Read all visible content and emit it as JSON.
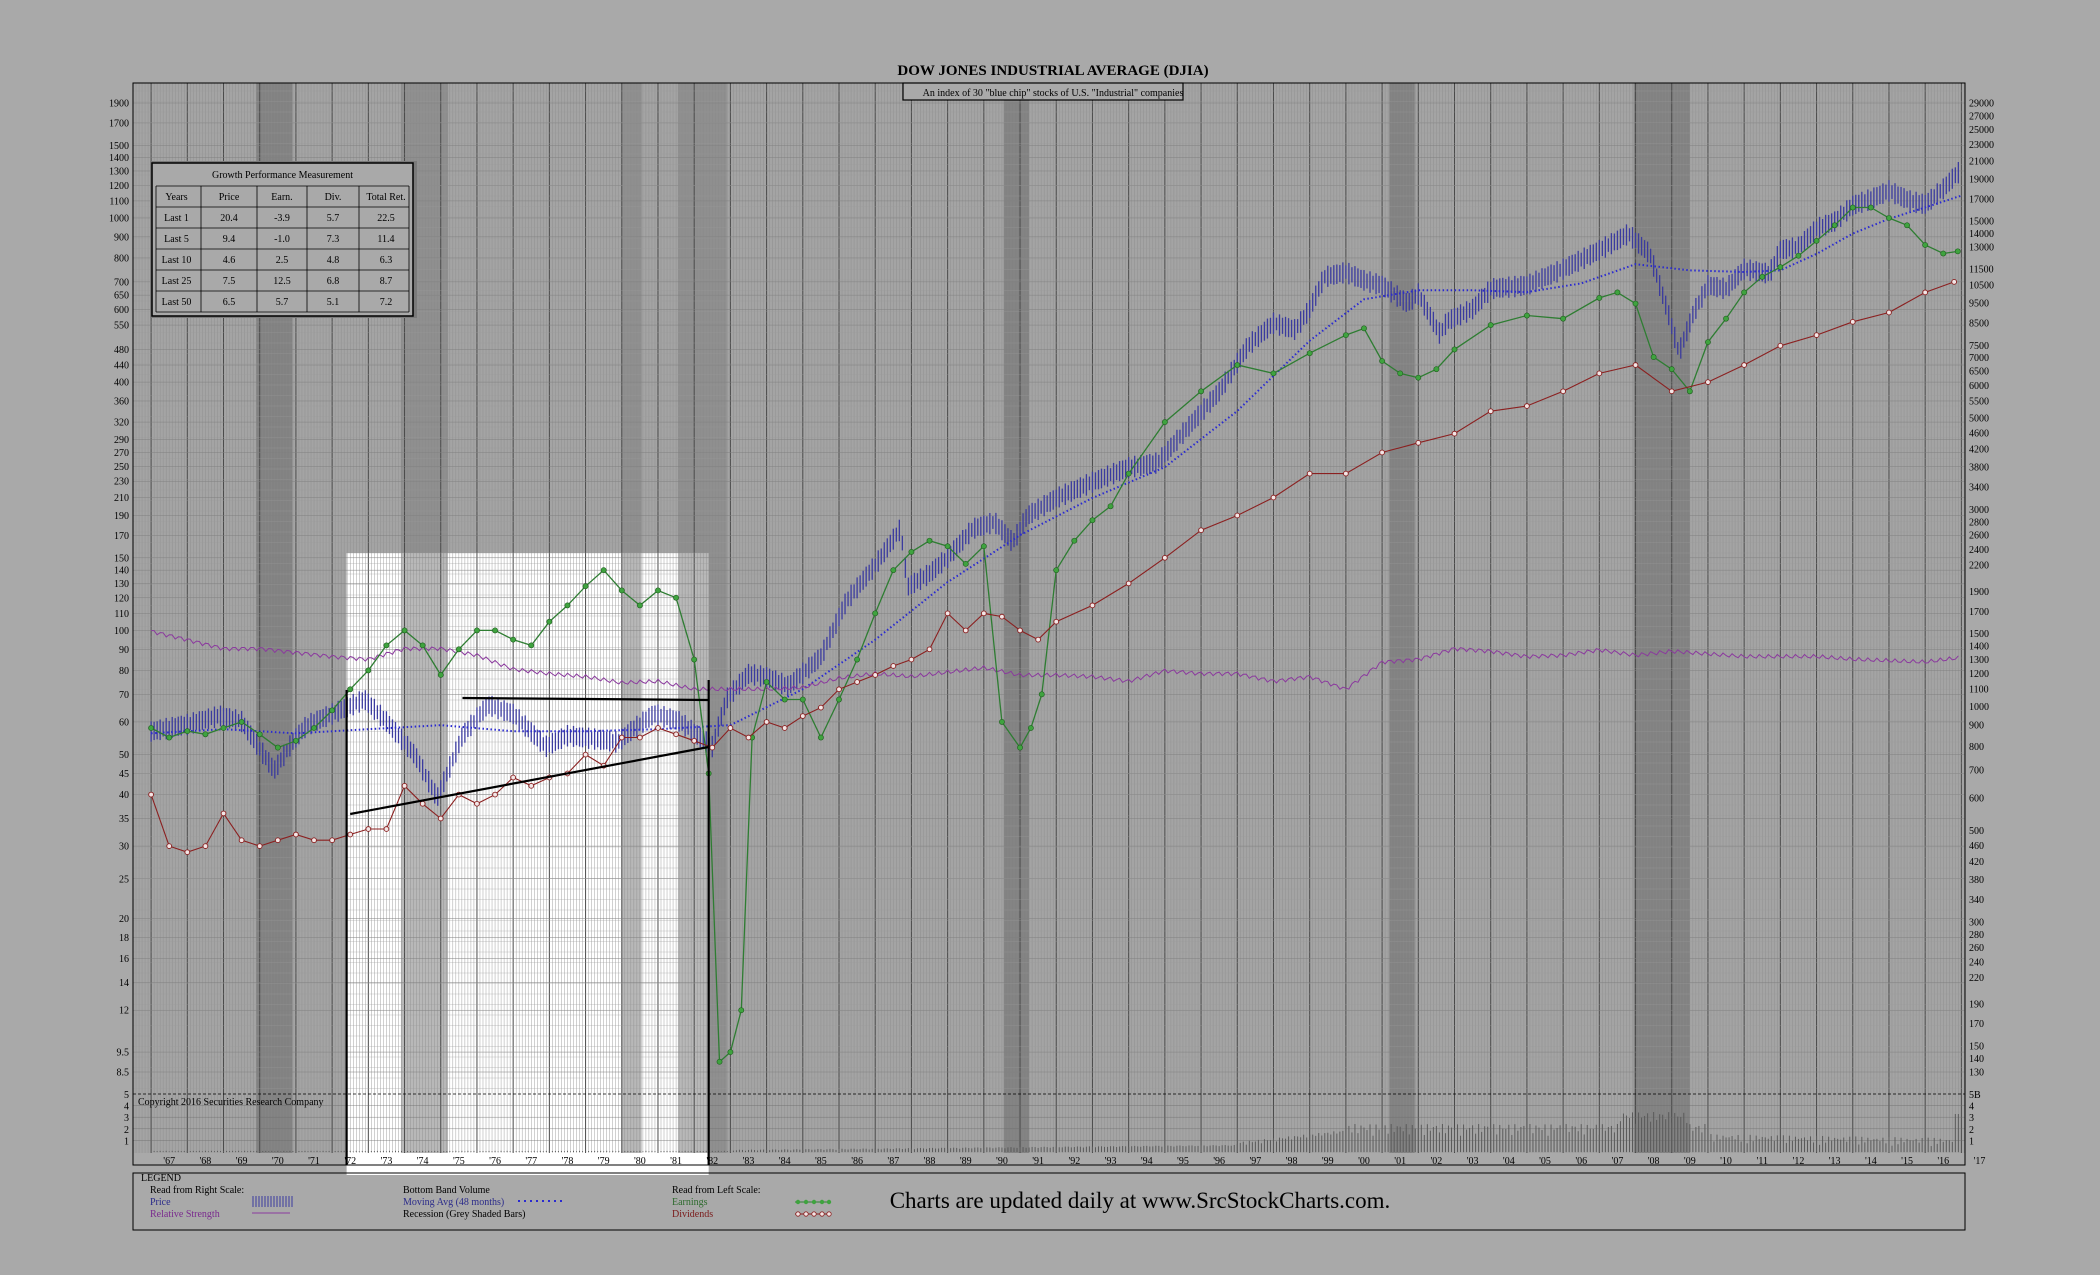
{
  "chart_data": {
    "type": "line",
    "title": "DOW JONES INDUSTRIAL AVERAGE (DJIA)",
    "subtitle": "An index of 30 \"blue chip\" stocks of U.S. \"Industrial\" companies",
    "copyright": "Copyright 2016 Securities Research Company",
    "footer_text": "Charts are updated daily at www.SrcStockCharts.com.",
    "x_range": [
      1966.5,
      2017.1
    ],
    "x_labels": [
      "'67",
      "'68",
      "'69",
      "'70",
      "'71",
      "'72",
      "'73",
      "'74",
      "'75",
      "'76",
      "'77",
      "'78",
      "'79",
      "'80",
      "'81",
      "'82",
      "'83",
      "'84",
      "'85",
      "'86",
      "'87",
      "'88",
      "'89",
      "'90",
      "'91",
      "'92",
      "'93",
      "'94",
      "'95",
      "'96",
      "'97",
      "'98",
      "'99",
      "'00",
      "'01",
      "'02",
      "'03",
      "'04",
      "'05",
      "'06",
      "'07",
      "'08",
      "'09",
      "'10",
      "'11",
      "'12",
      "'13",
      "'14",
      "'15",
      "'16",
      "'17"
    ],
    "left_axis_range": [
      7.3,
      2100
    ],
    "left_ticks": [
      "1900",
      "1700",
      "1500",
      "1400",
      "1300",
      "1200",
      "1100",
      "1000",
      "900",
      "800",
      "700",
      "650",
      "600",
      "550",
      "480",
      "440",
      "400",
      "360",
      "320",
      "290",
      "270",
      "250",
      "230",
      "210",
      "190",
      "170",
      "150",
      "140",
      "130",
      "120",
      "110",
      "100",
      "90",
      "80",
      "70",
      "60",
      "50",
      "45",
      "40",
      "35",
      "30",
      "25",
      "20",
      "18",
      "16",
      "14",
      "12",
      "9.5",
      "8.5"
    ],
    "right_axis_range": [
      105,
      30000
    ],
    "right_ticks": [
      "29000",
      "27000",
      "25000",
      "23000",
      "21000",
      "19000",
      "17000",
      "15000",
      "14000",
      "13000",
      "11500",
      "10500",
      "9500",
      "8500",
      "7500",
      "7000",
      "6500",
      "6000",
      "5500",
      "5000",
      "4600",
      "4200",
      "3800",
      "3400",
      "3000",
      "2800",
      "2600",
      "2400",
      "2200",
      "1900",
      "1700",
      "1500",
      "1400",
      "1300",
      "1200",
      "1100",
      "1000",
      "900",
      "800",
      "700",
      "600",
      "500",
      "460",
      "420",
      "380",
      "340",
      "300",
      "280",
      "260",
      "240",
      "220",
      "190",
      "170",
      "150",
      "140",
      "130"
    ],
    "volume_ticks": [
      "5B",
      "4",
      "3",
      "2",
      "1"
    ],
    "volume_ticks_left": [
      "5",
      "4",
      "3",
      "2",
      "1"
    ],
    "recessions": [
      [
        1969.9,
        1970.9
      ],
      [
        1973.9,
        1975.2
      ],
      [
        1980.0,
        1980.55
      ],
      [
        1981.55,
        1982.9
      ],
      [
        1990.55,
        1991.25
      ],
      [
        2001.2,
        2001.9
      ],
      [
        2007.95,
        2009.5
      ]
    ],
    "highlight_period": [
      1972.4,
      1982.4
    ],
    "series": [
      {
        "name": "Price",
        "scale": "right",
        "color": "#3b3b9e",
        "x": [
          1967,
          1968,
          1968.9,
          1969.5,
          1970.4,
          1970.9,
          1971.3,
          1972.0,
          1972.9,
          1973.5,
          1974.3,
          1974.9,
          1975.6,
          1976.3,
          1977.0,
          1977.9,
          1978.5,
          1979.0,
          1979.9,
          1980.3,
          1980.9,
          1981.6,
          1982.5,
          1982.9,
          1983.5,
          1984.0,
          1984.6,
          1985.5,
          1986.2,
          1987.0,
          1987.7,
          1987.9,
          1988.5,
          1989.0,
          1989.7,
          1990.3,
          1990.8,
          1991.2,
          1992.0,
          1993.0,
          1994.0,
          1994.8,
          1995.5,
          1996.5,
          1997.3,
          1998.0,
          1998.6,
          1999.0,
          1999.4,
          2000.0,
          2000.5,
          2001.0,
          2001.7,
          2002.0,
          2002.6,
          2002.8,
          2003.5,
          2004.0,
          2005.0,
          2006.0,
          2006.8,
          2007.5,
          2007.8,
          2008.4,
          2008.9,
          2009.2,
          2009.6,
          2010.0,
          2010.5,
          2011.0,
          2011.7,
          2012.0,
          2012.5,
          2013.0,
          2013.5,
          2014.0,
          2014.5,
          2015.0,
          2015.6,
          2016.0,
          2016.5,
          2016.9
        ],
        "y": [
          870,
          905,
          950,
          920,
          700,
          820,
          900,
          960,
          1040,
          920,
          760,
          600,
          850,
          1010,
          960,
          800,
          850,
          840,
          820,
          880,
          960,
          920,
          800,
          1046,
          1200,
          1180,
          1120,
          1320,
          1800,
          2200,
          2700,
          1950,
          2100,
          2300,
          2700,
          2800,
          2500,
          2900,
          3200,
          3500,
          3800,
          3900,
          4600,
          5800,
          7500,
          8500,
          8200,
          9200,
          11000,
          11300,
          10800,
          10500,
          9500,
          10000,
          8000,
          8600,
          9200,
          10300,
          10500,
          11500,
          12500,
          13500,
          14000,
          12500,
          9000,
          7200,
          9000,
          10500,
          10300,
          11500,
          11200,
          12800,
          13000,
          14400,
          15000,
          16400,
          17000,
          17800,
          16800,
          16500,
          18000,
          19700
        ]
      },
      {
        "name": "Moving Avg (48 months)",
        "scale": "right",
        "color": "#2a2ad0",
        "x": [
          1967,
          1969,
          1971,
          1973,
          1975,
          1977,
          1979,
          1981,
          1983,
          1985,
          1987,
          1989,
          1991,
          1993,
          1995,
          1997,
          1999,
          2000.5,
          2002,
          2003.5,
          2005,
          2006.5,
          2008,
          2009.5,
          2011,
          2012,
          2013,
          2014,
          2015,
          2016,
          2017
        ],
        "y": [
          860,
          880,
          860,
          880,
          900,
          870,
          870,
          880,
          900,
          1100,
          1450,
          2000,
          2600,
          3200,
          3800,
          5200,
          7700,
          9700,
          10200,
          10200,
          10100,
          10600,
          11800,
          11400,
          11300,
          11400,
          12500,
          14000,
          15200,
          16200,
          17300
        ]
      },
      {
        "name": "Relative Strength",
        "scale": "right",
        "color": "#8b3a9e",
        "x": [
          1967,
          1968,
          1969,
          1970,
          1971,
          1972,
          1973,
          1974,
          1975,
          1976,
          1977,
          1978,
          1979,
          1980,
          1981,
          1982,
          1983,
          1984,
          1985,
          1986,
          1987,
          1988,
          1989,
          1990,
          1991,
          1992,
          1993,
          1994,
          1995,
          1996,
          1997,
          1998,
          1999,
          2000,
          2001,
          2002,
          2003,
          2004,
          2005,
          2006,
          2007,
          2008,
          2009,
          2010,
          2011,
          2012,
          2013,
          2014,
          2015,
          2016,
          2016.9
        ],
        "y": [
          1520,
          1450,
          1380,
          1380,
          1350,
          1320,
          1300,
          1380,
          1380,
          1330,
          1230,
          1200,
          1180,
          1140,
          1150,
          1100,
          1100,
          1100,
          1110,
          1170,
          1200,
          1180,
          1210,
          1240,
          1190,
          1190,
          1180,
          1150,
          1220,
          1200,
          1200,
          1150,
          1180,
          1100,
          1280,
          1300,
          1380,
          1360,
          1320,
          1330,
          1370,
          1330,
          1360,
          1340,
          1320,
          1320,
          1320,
          1300,
          1290,
          1280,
          1310
        ]
      },
      {
        "name": "Earnings",
        "scale": "left",
        "color": "#2e7d32",
        "x": [
          1967,
          1967.5,
          1968,
          1968.5,
          1969,
          1969.5,
          1970,
          1970.5,
          1971,
          1971.5,
          1972,
          1972.5,
          1973,
          1973.5,
          1974,
          1974.5,
          1975,
          1975.5,
          1976,
          1976.5,
          1977,
          1977.5,
          1978,
          1978.5,
          1979,
          1979.5,
          1980,
          1980.5,
          1981,
          1981.5,
          1982,
          1982.4,
          1982.7,
          1983,
          1983.3,
          1983.6,
          1984,
          1984.5,
          1985,
          1985.5,
          1986,
          1986.5,
          1987,
          1987.5,
          1988,
          1988.5,
          1989,
          1989.5,
          1990,
          1990.5,
          1991,
          1991.3,
          1991.6,
          1992,
          1992.5,
          1993,
          1993.5,
          1994,
          1995,
          1996,
          1997,
          1998,
          1999,
          2000,
          2000.5,
          2001,
          2001.5,
          2002,
          2002.5,
          2003,
          2004,
          2005,
          2006,
          2007,
          2007.5,
          2008,
          2008.5,
          2009,
          2009.5,
          2010,
          2010.5,
          2011,
          2011.5,
          2012,
          2012.5,
          2013,
          2013.5,
          2014,
          2014.5,
          2015,
          2015.5,
          2016,
          2016.5,
          2016.9
        ],
        "y": [
          58,
          55,
          57,
          56,
          58,
          60,
          56,
          52,
          54,
          58,
          64,
          72,
          80,
          92,
          100,
          92,
          78,
          90,
          100,
          100,
          95,
          92,
          105,
          115,
          128,
          140,
          125,
          115,
          125,
          120,
          85,
          45,
          9,
          9.5,
          12,
          55,
          75,
          68,
          68,
          55,
          68,
          85,
          110,
          140,
          155,
          165,
          160,
          145,
          160,
          60,
          52,
          58,
          70,
          140,
          165,
          185,
          200,
          240,
          320,
          380,
          440,
          420,
          470,
          520,
          540,
          450,
          420,
          410,
          430,
          480,
          550,
          580,
          570,
          640,
          660,
          620,
          460,
          430,
          380,
          500,
          570,
          660,
          720,
          760,
          810,
          880,
          960,
          1060,
          1060,
          1000,
          960,
          860,
          820,
          830
        ]
      },
      {
        "name": "Dividends",
        "scale": "left",
        "color": "#8b2020",
        "x": [
          1967,
          1967.5,
          1968,
          1968.5,
          1969,
          1969.5,
          1970,
          1970.5,
          1971,
          1971.5,
          1972,
          1972.5,
          1973,
          1973.5,
          1974,
          1974.5,
          1975,
          1975.5,
          1976,
          1976.5,
          1977,
          1977.5,
          1978,
          1978.5,
          1979,
          1979.5,
          1980,
          1980.5,
          1981,
          1981.5,
          1982,
          1982.5,
          1983,
          1983.5,
          1984,
          1984.5,
          1985,
          1985.5,
          1986,
          1986.5,
          1987,
          1987.5,
          1988,
          1988.5,
          1989,
          1989.5,
          1990,
          1990.5,
          1991,
          1991.5,
          1992,
          1993,
          1994,
          1995,
          1996,
          1997,
          1998,
          1999,
          2000,
          2001,
          2002,
          2003,
          2004,
          2005,
          2006,
          2007,
          2008,
          2009,
          2010,
          2011,
          2012,
          2013,
          2014,
          2015,
          2016,
          2016.8
        ],
        "y": [
          40,
          30,
          29,
          30,
          36,
          31,
          30,
          31,
          32,
          31,
          31,
          32,
          33,
          33,
          42,
          38,
          35,
          40,
          38,
          40,
          44,
          42,
          44,
          45,
          50,
          47,
          55,
          55,
          58,
          56,
          54,
          52,
          58,
          55,
          60,
          58,
          62,
          65,
          72,
          75,
          78,
          82,
          85,
          90,
          110,
          100,
          110,
          108,
          100,
          95,
          105,
          115,
          130,
          150,
          175,
          190,
          210,
          240,
          240,
          270,
          285,
          300,
          340,
          350,
          380,
          420,
          440,
          380,
          400,
          440,
          490,
          520,
          560,
          590,
          660,
          700
        ]
      }
    ],
    "growth_table": {
      "title": "Growth Performance Measurement",
      "headers": [
        "Years",
        "Price",
        "Earn.",
        "Div.",
        "Total Ret."
      ],
      "rows": [
        [
          "Last 1",
          "20.4",
          "-3.9",
          "5.7",
          "22.5"
        ],
        [
          "Last 5",
          "9.4",
          "-1.0",
          "7.3",
          "11.4"
        ],
        [
          "Last 10",
          "4.6",
          "2.5",
          "4.8",
          "6.3"
        ],
        [
          "Last 25",
          "7.5",
          "12.5",
          "6.8",
          "8.7"
        ],
        [
          "Last 50",
          "6.5",
          "5.7",
          "5.1",
          "7.2"
        ]
      ]
    },
    "legend": {
      "title": "LEGEND",
      "col1_header": "Read from Right Scale:",
      "col1_items": [
        "Price",
        "Relative Strength"
      ],
      "col2_header": "Bottom Band Volume",
      "col2_items": [
        "Moving Avg (48 months)",
        "Recession (Grey Shaded Bars)"
      ],
      "col3_header": "Read from Left Scale:",
      "col3_items": [
        "Earnings",
        "Dividends"
      ]
    },
    "colors": {
      "background": "#a9a9a9",
      "grid": "#6e6e6e",
      "recession": "#7a7a7a",
      "highlight": "#ffffff"
    }
  }
}
